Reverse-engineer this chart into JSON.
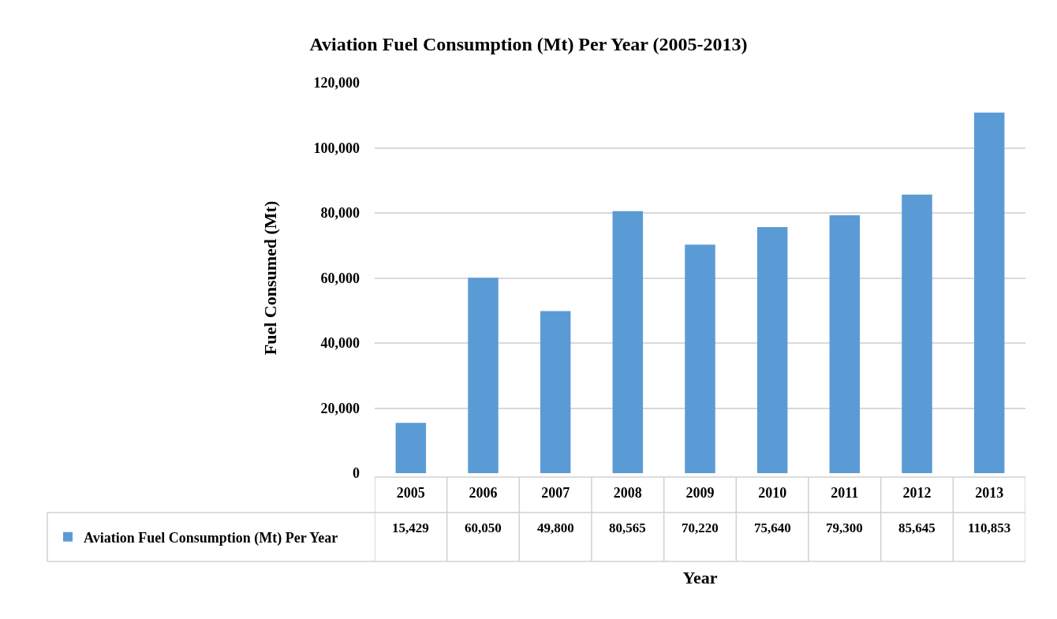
{
  "chart_data": {
    "type": "bar",
    "title": "Aviation Fuel Consumption (Mt) Per Year (2005-2013)",
    "xlabel": "Year",
    "ylabel": "Fuel Consumed (Mt)",
    "categories": [
      "2005",
      "2006",
      "2007",
      "2008",
      "2009",
      "2010",
      "2011",
      "2012",
      "2013"
    ],
    "series": [
      {
        "name": "Aviation Fuel Consumption (Mt) Per Year",
        "color": "#5b9bd5",
        "values": [
          15429,
          60050,
          49800,
          80565,
          70220,
          75640,
          79300,
          85645,
          110853
        ],
        "value_labels": [
          "15,429",
          "60,050",
          "49,800",
          "80,565",
          "70,220",
          "75,640",
          "79,300",
          "85,645",
          "110,853"
        ]
      }
    ],
    "ylim": [
      0,
      120000
    ],
    "yticks": [
      {
        "value": 0,
        "label": "0"
      },
      {
        "value": 20000,
        "label": "20,000"
      },
      {
        "value": 40000,
        "label": "40,000"
      },
      {
        "value": 60000,
        "label": "60,000"
      },
      {
        "value": 80000,
        "label": "80,000"
      },
      {
        "value": 100000,
        "label": "100,000"
      },
      {
        "value": 120000,
        "label": "120,000"
      }
    ],
    "grid": "y",
    "legend": "bottom left"
  }
}
